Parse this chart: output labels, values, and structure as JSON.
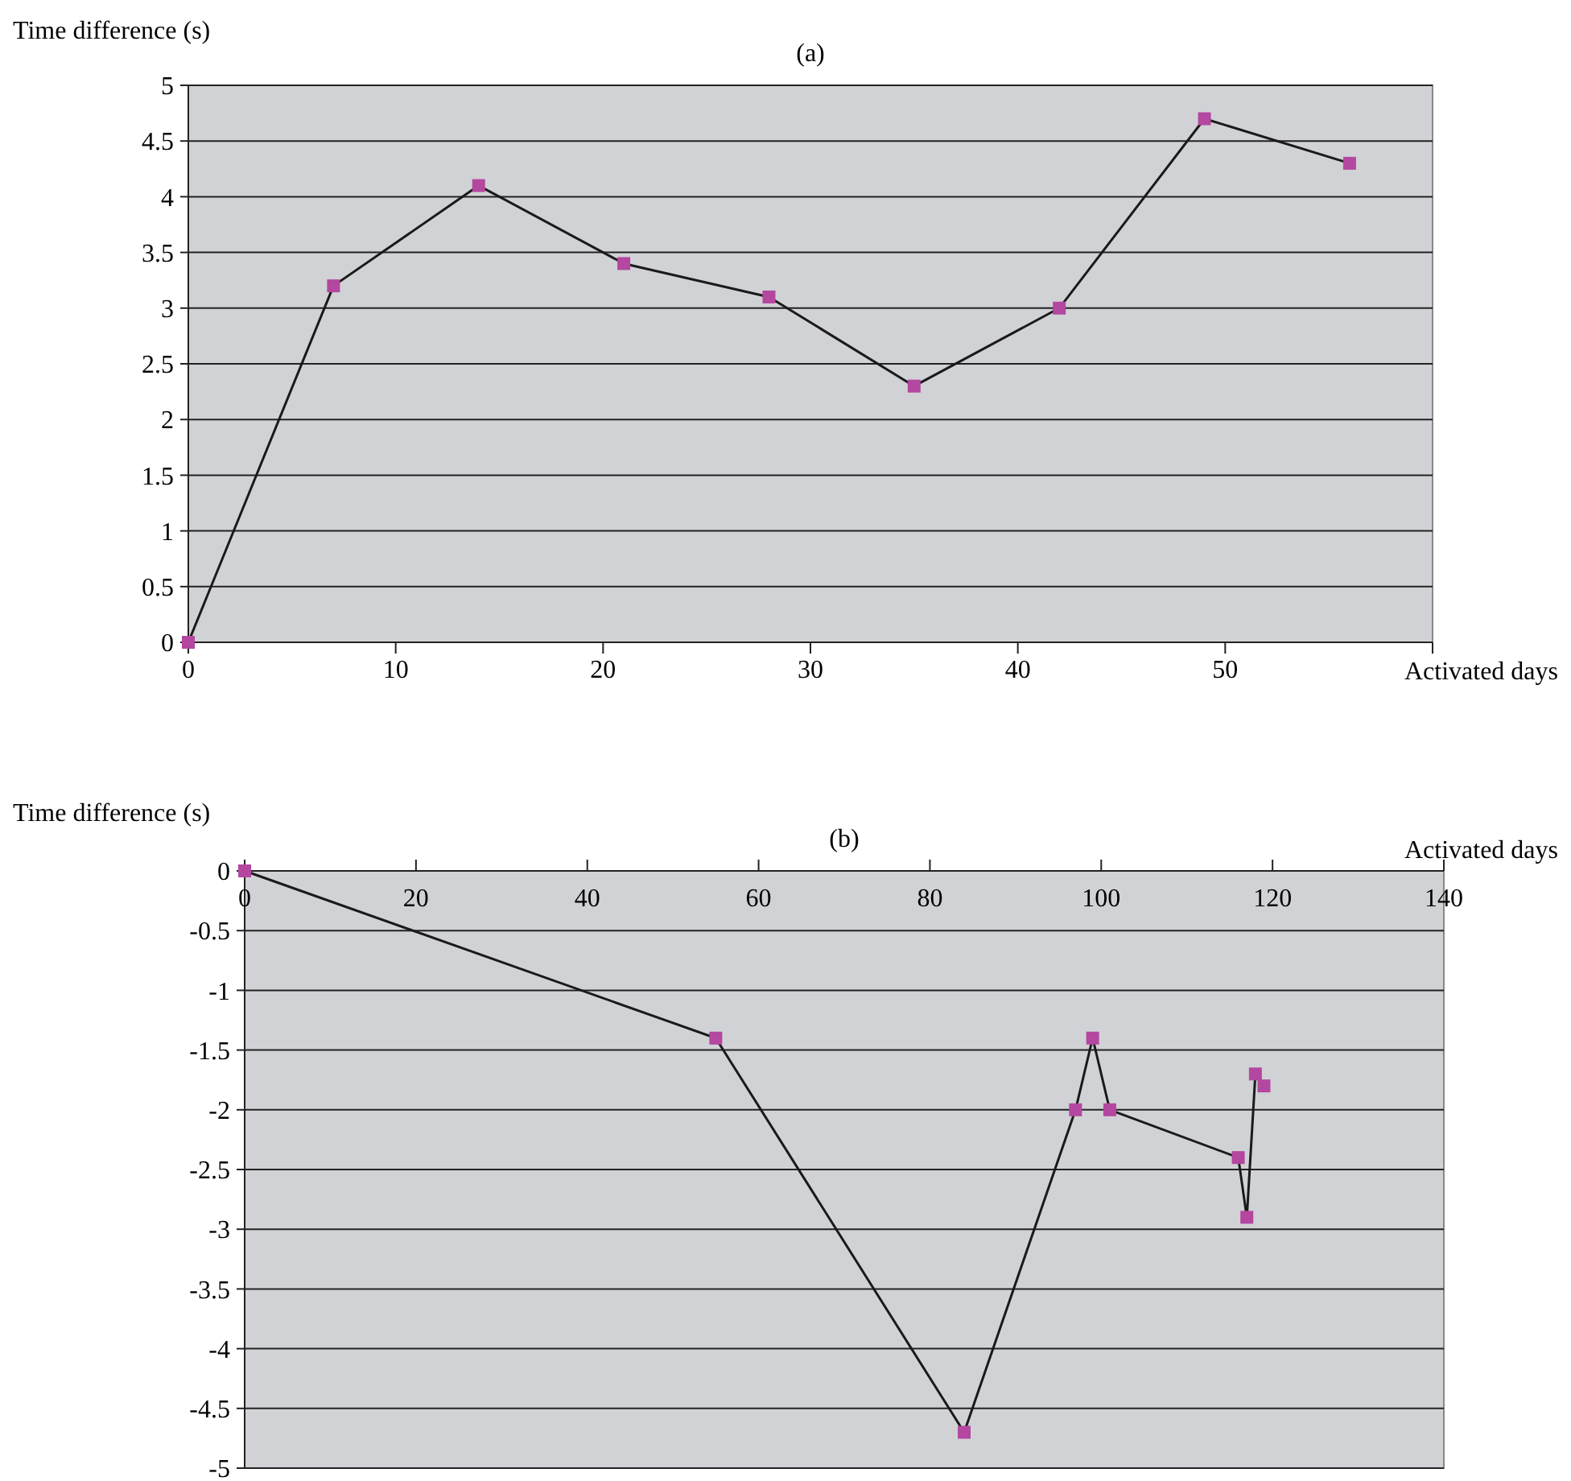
{
  "chart_data": [
    {
      "type": "line",
      "title": "(a)",
      "xlabel": "Activated days",
      "ylabel": "Time difference (s)",
      "xlim": [
        0,
        60
      ],
      "xticks": [
        0,
        10,
        20,
        30,
        40,
        50,
        {
          "value": 60,
          "label": null
        }
      ],
      "ylim": [
        0,
        5
      ],
      "yticks": [
        0,
        0.5,
        1,
        1.5,
        2,
        2.5,
        3,
        3.5,
        4,
        4.5,
        5
      ],
      "grid": "y",
      "marker": "square",
      "line_style": "solid",
      "series": [
        {
          "color": "#1a1a1a",
          "x": [
            0,
            7,
            14,
            21,
            28,
            35,
            42,
            49,
            56
          ],
          "values": [
            0,
            3.2,
            4.1,
            3.4,
            3.1,
            2.3,
            3.0,
            4.7,
            4.3
          ]
        }
      ]
    },
    {
      "type": "line",
      "title": "(b)",
      "xlabel": "Activated days",
      "ylabel": "Time difference (s)",
      "xlim": [
        0,
        140
      ],
      "xticks": [
        0,
        20,
        40,
        60,
        80,
        100,
        120,
        140
      ],
      "ylim": [
        -5,
        0
      ],
      "yticks": [
        -5,
        -4.5,
        -4,
        -3.5,
        -3,
        -2.5,
        -2,
        -1.5,
        -1,
        -0.5,
        0
      ],
      "grid": "y",
      "marker": "square",
      "line_style": "solid",
      "series": [
        {
          "color": "#1a1a1a",
          "x": [
            0,
            55,
            84,
            97,
            99,
            101,
            116,
            117,
            118,
            119
          ],
          "values": [
            0,
            -1.4,
            -4.7,
            -2.0,
            -1.4,
            -2.0,
            -2.4,
            -2.9,
            -1.7,
            -1.8
          ]
        }
      ]
    }
  ]
}
